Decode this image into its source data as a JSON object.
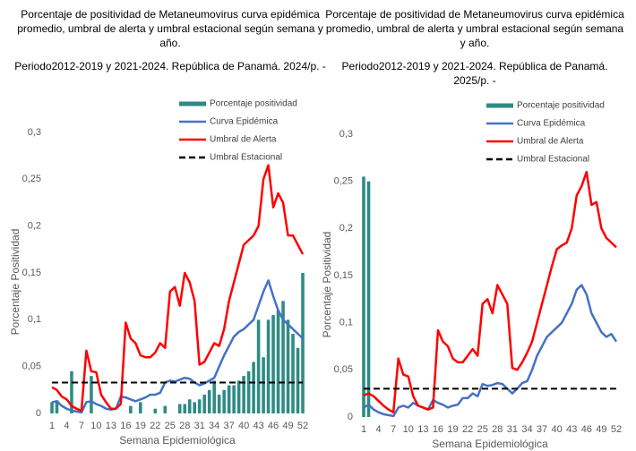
{
  "chart_data": [
    {
      "type": "combo",
      "title": "Porcentaje de positividad de Metaneumovirus curva epidémica promedio, umbral de alerta  y umbral estacional según semana y año.",
      "subtitle": "Periodo2012-2019 y 2021-2024.  República de Panamá. 2024/p.  -",
      "x_label": "Semana Epidemiológica",
      "y_label": "Porcentaje Positividad",
      "categories": [
        1,
        null,
        null,
        4,
        null,
        null,
        7,
        null,
        null,
        10,
        null,
        null,
        13,
        null,
        null,
        16,
        null,
        null,
        19,
        null,
        null,
        22,
        null,
        null,
        25,
        null,
        null,
        28,
        null,
        null,
        31,
        null,
        null,
        34,
        null,
        null,
        37,
        null,
        null,
        40,
        null,
        null,
        43,
        null,
        null,
        46,
        null,
        null,
        49,
        null,
        null,
        52
      ],
      "ylim": [
        0,
        0.3
      ],
      "yticks": [
        0,
        {
          "value": 0.05,
          "label": "0,05"
        },
        {
          "value": 0.1,
          "label": "0,1"
        },
        {
          "value": 0.15,
          "label": "0,15"
        },
        {
          "value": 0.2,
          "label": "0,2"
        },
        {
          "value": 0.25,
          "label": "0,25"
        },
        {
          "value": 0.3,
          "label": "0,3"
        }
      ],
      "legend": "upper right",
      "series": [
        {
          "name": "Porcentaje positividad",
          "kind": "bar",
          "color": "#2e8b84",
          "values": [
            0.012,
            0.014,
            0,
            0,
            0.045,
            0,
            0,
            0,
            0.04,
            0,
            0,
            0,
            0,
            0,
            0,
            0,
            0.008,
            0,
            0.012,
            0,
            0,
            0.005,
            0,
            0.008,
            0,
            0,
            0.01,
            0.01,
            0.015,
            0.012,
            0.015,
            0.02,
            0.025,
            0.035,
            0.02,
            0.025,
            0.03,
            0.03,
            0.035,
            0.04,
            0.045,
            0.055,
            0.1,
            0.06,
            0.1,
            0.105,
            0.11,
            0.12,
            0.1,
            0.085,
            0.07,
            0.15
          ]
        },
        {
          "name": "Curva Epidémica",
          "kind": "line",
          "color": "#4472c4",
          "values": [
            0.012,
            0.013,
            0.008,
            0.005,
            0.003,
            0.002,
            0.001,
            0.012,
            0.013,
            0.01,
            0.008,
            0.005,
            0.004,
            0.005,
            0.018,
            0.017,
            0.015,
            0.013,
            0.015,
            0.017,
            0.02,
            0.02,
            0.022,
            0.033,
            0.035,
            0.034,
            0.036,
            0.038,
            0.037,
            0.033,
            0.03,
            0.032,
            0.035,
            0.038,
            0.05,
            0.062,
            0.072,
            0.082,
            0.087,
            0.09,
            0.095,
            0.1,
            0.115,
            0.13,
            0.142,
            0.125,
            0.11,
            0.1,
            0.095,
            0.09,
            0.085,
            0.08
          ]
        },
        {
          "name": "Umbral de Alerta",
          "kind": "line",
          "color": "#ff0000",
          "values": [
            0.028,
            0.025,
            0.018,
            0.015,
            0.008,
            0.005,
            0.003,
            0.067,
            0.045,
            0.044,
            0.02,
            0.012,
            0.005,
            0.005,
            0.01,
            0.097,
            0.08,
            0.075,
            0.062,
            0.06,
            0.06,
            0.065,
            0.075,
            0.07,
            0.13,
            0.135,
            0.115,
            0.15,
            0.14,
            0.12,
            0.052,
            0.055,
            0.065,
            0.075,
            0.072,
            0.09,
            0.12,
            0.14,
            0.16,
            0.18,
            0.185,
            0.19,
            0.2,
            0.25,
            0.265,
            0.22,
            0.235,
            0.225,
            0.19,
            0.19,
            0.18,
            0.17
          ]
        },
        {
          "name": "Umbral Estacional",
          "kind": "line",
          "dash": true,
          "color": "#000000",
          "values": [
            0.033,
            0.033,
            0.033,
            0.033,
            0.033,
            0.033,
            0.033,
            0.033,
            0.033,
            0.033,
            0.033,
            0.033,
            0.033,
            0.033,
            0.033,
            0.033,
            0.033,
            0.033,
            0.033,
            0.033,
            0.033,
            0.033,
            0.033,
            0.033,
            0.033,
            0.033,
            0.033,
            0.033,
            0.033,
            0.033,
            0.033,
            0.033,
            0.033,
            0.033,
            0.033,
            0.033,
            0.033,
            0.033,
            0.033,
            0.033,
            0.033,
            0.033,
            0.033,
            0.033,
            0.033,
            0.033,
            0.033,
            0.033,
            0.033,
            0.033,
            0.033,
            0.033
          ]
        }
      ]
    },
    {
      "type": "combo",
      "title": "Porcentaje de positividad de Metaneumovirus curva epidémica promedio, umbral de alerta  y umbral estacional según semana y año.",
      "subtitle": "Periodo2012-2019 y 2021-2024.  República de Panamá. 2025/p.  -",
      "x_label": "Semana Epidemiológica",
      "y_label": "Porcentaje Positividad",
      "categories": [
        1,
        null,
        null,
        4,
        null,
        null,
        7,
        null,
        null,
        10,
        null,
        null,
        13,
        null,
        null,
        16,
        null,
        null,
        19,
        null,
        null,
        22,
        null,
        null,
        25,
        null,
        null,
        28,
        null,
        null,
        31,
        null,
        null,
        34,
        null,
        null,
        37,
        null,
        null,
        40,
        null,
        null,
        43,
        null,
        null,
        46,
        null,
        null,
        49,
        null,
        null,
        52
      ],
      "ylim": [
        0,
        0.3
      ],
      "yticks": [
        0,
        {
          "value": 0.05,
          "label": "0,05"
        },
        {
          "value": 0.1,
          "label": "0,1"
        },
        {
          "value": 0.15,
          "label": "0,15"
        },
        {
          "value": 0.2,
          "label": "0,2"
        },
        {
          "value": 0.25,
          "label": "0,25"
        },
        {
          "value": 0.3,
          "label": "0,3"
        }
      ],
      "legend": "upper right",
      "series": [
        {
          "name": "Porcentaje positividad",
          "kind": "bar",
          "color": "#2e8b84",
          "values": [
            0.255,
            0.25,
            null,
            null,
            null,
            null,
            null,
            null,
            null,
            null,
            null,
            null,
            null,
            null,
            null,
            null,
            null,
            null,
            null,
            null,
            null,
            null,
            null,
            null,
            null,
            null,
            null,
            null,
            null,
            null,
            null,
            null,
            null,
            null,
            null,
            null,
            null,
            null,
            null,
            null,
            null,
            null,
            null,
            null,
            null,
            null,
            null,
            null,
            null,
            null,
            null,
            null
          ]
        },
        {
          "name": "Curva Epidémica",
          "kind": "line",
          "color": "#4472c4",
          "values": [
            0.01,
            0.013,
            0.008,
            0.005,
            0.003,
            0.002,
            0.001,
            0.01,
            0.012,
            0.01,
            0.015,
            0.012,
            0.01,
            0.008,
            0.018,
            0.015,
            0.013,
            0.01,
            0.012,
            0.013,
            0.02,
            0.02,
            0.025,
            0.022,
            0.035,
            0.033,
            0.034,
            0.036,
            0.035,
            0.03,
            0.025,
            0.03,
            0.036,
            0.038,
            0.05,
            0.065,
            0.075,
            0.085,
            0.09,
            0.095,
            0.1,
            0.11,
            0.12,
            0.135,
            0.14,
            0.13,
            0.11,
            0.1,
            0.09,
            0.085,
            0.088,
            0.08
          ]
        },
        {
          "name": "Umbral de Alerta",
          "kind": "line",
          "color": "#ff0000",
          "values": [
            0.023,
            0.025,
            0.022,
            0.017,
            0.012,
            0.008,
            0.005,
            0.062,
            0.045,
            0.043,
            0.022,
            0.012,
            0.01,
            0.008,
            0.01,
            0.092,
            0.08,
            0.075,
            0.062,
            0.058,
            0.058,
            0.065,
            0.072,
            0.065,
            0.12,
            0.125,
            0.11,
            0.14,
            0.13,
            0.12,
            0.052,
            0.05,
            0.058,
            0.068,
            0.08,
            0.1,
            0.12,
            0.14,
            0.16,
            0.178,
            0.182,
            0.185,
            0.2,
            0.235,
            0.245,
            0.26,
            0.225,
            0.228,
            0.2,
            0.19,
            0.185,
            0.18
          ]
        },
        {
          "name": "Umbral Estacional",
          "kind": "line",
          "dash": true,
          "color": "#000000",
          "values": [
            0.03,
            0.03,
            0.03,
            0.03,
            0.03,
            0.03,
            0.03,
            0.03,
            0.03,
            0.03,
            0.03,
            0.03,
            0.03,
            0.03,
            0.03,
            0.03,
            0.03,
            0.03,
            0.03,
            0.03,
            0.03,
            0.03,
            0.03,
            0.03,
            0.03,
            0.03,
            0.03,
            0.03,
            0.03,
            0.03,
            0.03,
            0.03,
            0.03,
            0.03,
            0.03,
            0.03,
            0.03,
            0.03,
            0.03,
            0.03,
            0.03,
            0.03,
            0.03,
            0.03,
            0.03,
            0.03,
            0.03,
            0.03,
            0.03,
            0.03,
            0.03,
            0.03
          ]
        }
      ]
    }
  ]
}
